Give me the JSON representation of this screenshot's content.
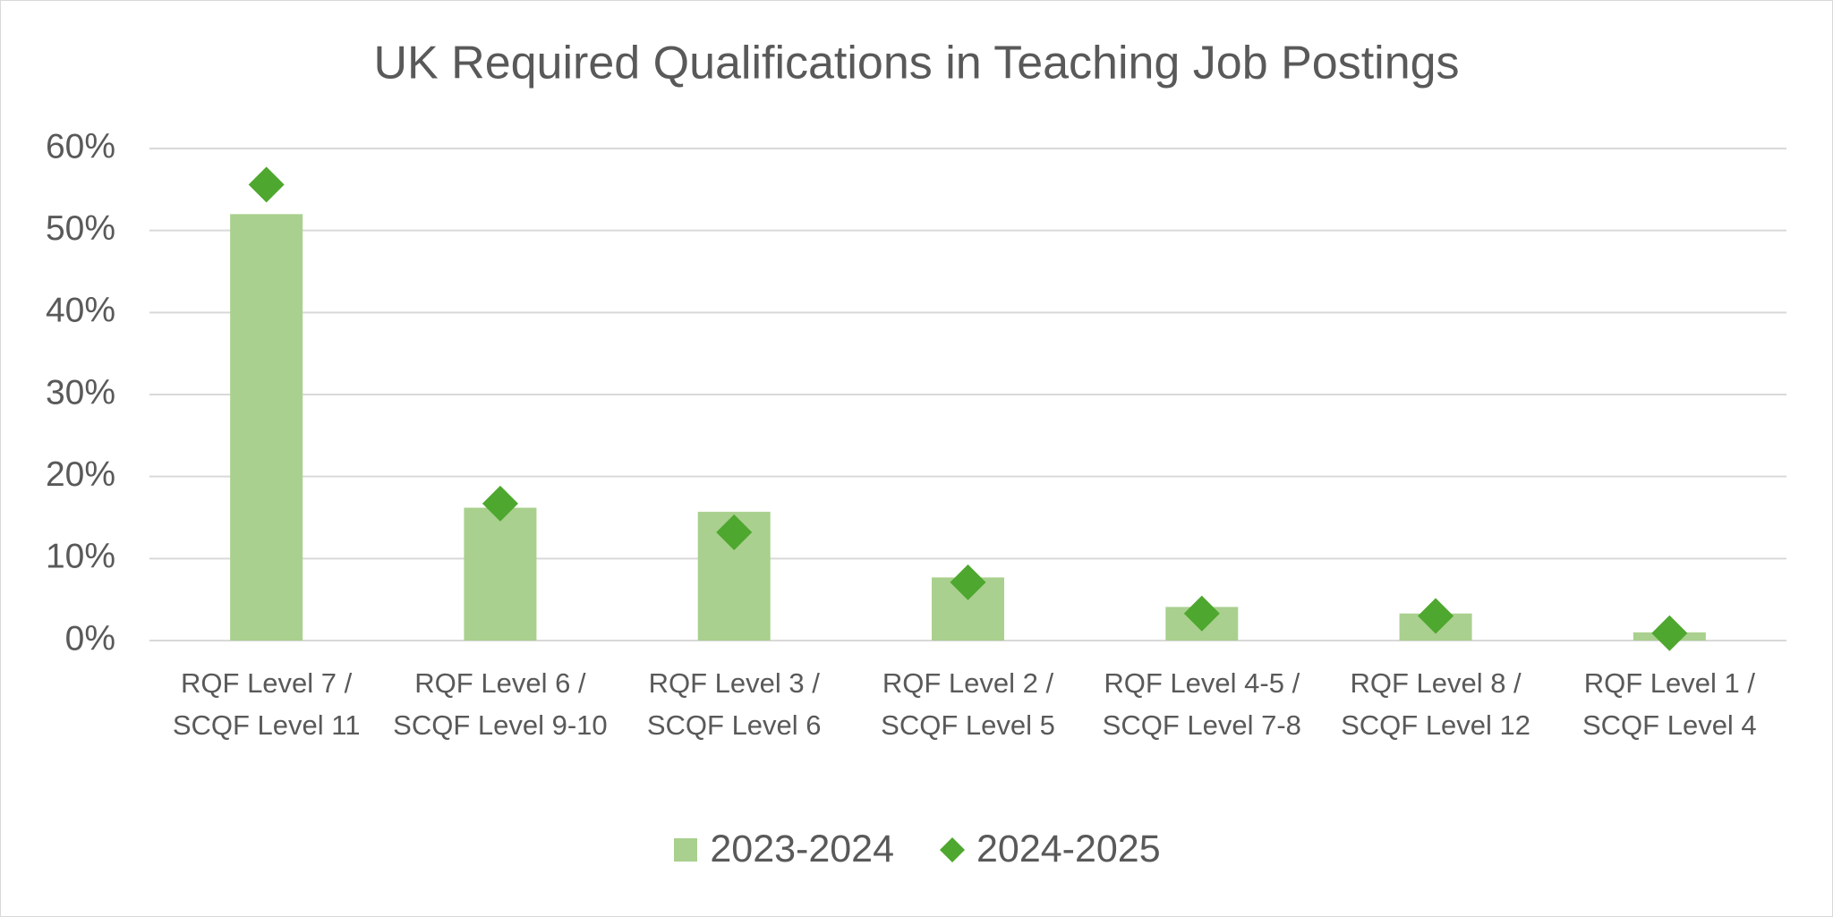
{
  "chart_data": {
    "type": "bar",
    "title": "UK Required Qualifications in Teaching Job Postings",
    "categories": [
      "RQF Level 7 / SCQF Level 11",
      "RQF Level 6 / SCQF Level 9-10",
      "RQF Level 3 / SCQF Level 6",
      "RQF Level 2 / SCQF Level 5",
      "RQF Level 4-5 / SCQF Level 7-8",
      "RQF Level 8 / SCQF Level 12",
      "RQF Level 1 / SCQF Level 4"
    ],
    "series": [
      {
        "name": "2023-2024",
        "type": "bar",
        "color": "#a9d08e",
        "values": [
          52.0,
          16.2,
          15.7,
          7.7,
          4.1,
          3.3,
          1.0
        ]
      },
      {
        "name": "2024-2025",
        "type": "scatter",
        "color": "#4ea72e",
        "values": [
          55.6,
          16.7,
          13.2,
          7.1,
          3.3,
          3.0,
          0.9
        ]
      }
    ],
    "ylim": [
      0,
      60
    ],
    "yticks": [
      {
        "value": 0,
        "label": "0%"
      },
      {
        "value": 10,
        "label": "10%"
      },
      {
        "value": 20,
        "label": "20%"
      },
      {
        "value": 30,
        "label": "30%"
      },
      {
        "value": 40,
        "label": "40%"
      },
      {
        "value": 50,
        "label": "50%"
      },
      {
        "value": 60,
        "label": "60%"
      }
    ],
    "grid": true,
    "legend": "bottom"
  }
}
